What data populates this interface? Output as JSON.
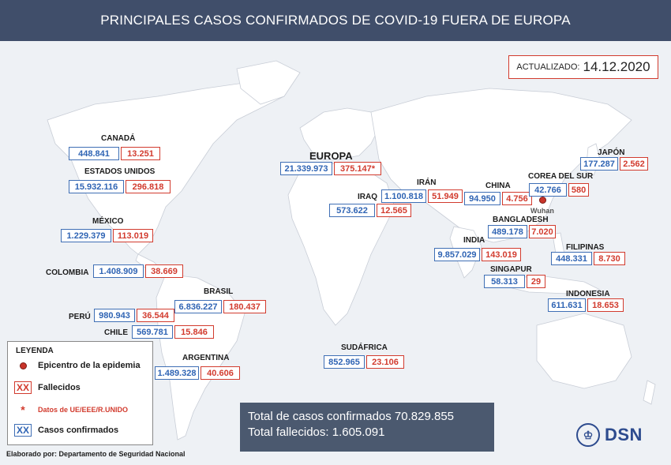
{
  "title": "PRINCIPALES CASOS CONFIRMADOS DE COVID-19 FUERA DE EUROPA",
  "updated": {
    "label": "ACTUALIZADO:",
    "date": "14.12.2020"
  },
  "regions": [
    {
      "id": "canada",
      "name": "CANADÁ",
      "cases": "448.841",
      "deaths": "13.251"
    },
    {
      "id": "usa",
      "name": "ESTADOS UNIDOS",
      "cases": "15.932.116",
      "deaths": "296.818"
    },
    {
      "id": "mexico",
      "name": "MÉXICO",
      "cases": "1.229.379",
      "deaths": "113.019"
    },
    {
      "id": "colombia",
      "name": "COLOMBIA",
      "cases": "1.408.909",
      "deaths": "38.669"
    },
    {
      "id": "brasil",
      "name": "BRASIL",
      "cases": "6.836.227",
      "deaths": "180.437"
    },
    {
      "id": "peru",
      "name": "PERÚ",
      "cases": "980.943",
      "deaths": "36.544"
    },
    {
      "id": "chile",
      "name": "CHILE",
      "cases": "569.781",
      "deaths": "15.846"
    },
    {
      "id": "argentina",
      "name": "ARGENTINA",
      "cases": "1.489.328",
      "deaths": "40.606"
    },
    {
      "id": "europa",
      "name": "EUROPA",
      "cases": "21.339.973",
      "deaths": "375.147*"
    },
    {
      "id": "iraq",
      "name": "IRAQ",
      "cases": "573.622",
      "deaths": "12.565"
    },
    {
      "id": "iran",
      "name": "IRÁN",
      "cases": "1.100.818",
      "deaths": "51.949"
    },
    {
      "id": "sudafrica",
      "name": "SUDÁFRICA",
      "cases": "852.965",
      "deaths": "23.106"
    },
    {
      "id": "china",
      "name": "CHINA",
      "cases": "94.950",
      "deaths": "4.756"
    },
    {
      "id": "corea",
      "name": "COREA DEL SUR",
      "cases": "42.766",
      "deaths": "580"
    },
    {
      "id": "japon",
      "name": "JAPÓN",
      "cases": "177.287",
      "deaths": "2.562"
    },
    {
      "id": "bangladesh",
      "name": "BANGLADESH",
      "cases": "489.178",
      "deaths": "7.020"
    },
    {
      "id": "india",
      "name": "INDIA",
      "cases": "9.857.029",
      "deaths": "143.019"
    },
    {
      "id": "filipinas",
      "name": "FILIPINAS",
      "cases": "448.331",
      "deaths": "8.730"
    },
    {
      "id": "singapur",
      "name": "SINGAPUR",
      "cases": "58.313",
      "deaths": "29"
    },
    {
      "id": "indonesia",
      "name": "INDONESIA",
      "cases": "611.631",
      "deaths": "18.653"
    }
  ],
  "epicenter": {
    "label": "Wuhan"
  },
  "legend": {
    "title": "LEYENDA",
    "epicenter": "Epicentro de la epidemia",
    "deaths_symbol": "XX",
    "deaths": "Fallecidos",
    "eu_symbol": "*",
    "eu": "Datos de UE/EEE/R.UNIDO",
    "cases_symbol": "XX",
    "cases": "Casos confirmados"
  },
  "totals": {
    "cases": "Total de casos confirmados 70.829.855",
    "deaths": "Total fallecidos: 1.605.091"
  },
  "credit": "Elaborado por: Departamento de Seguridad Nacional",
  "logo": {
    "text": "DSN"
  },
  "colors": {
    "header": "#404e6a",
    "cases": "#2f64b4",
    "deaths": "#d23b2e",
    "totals_box": "#4b596f"
  }
}
